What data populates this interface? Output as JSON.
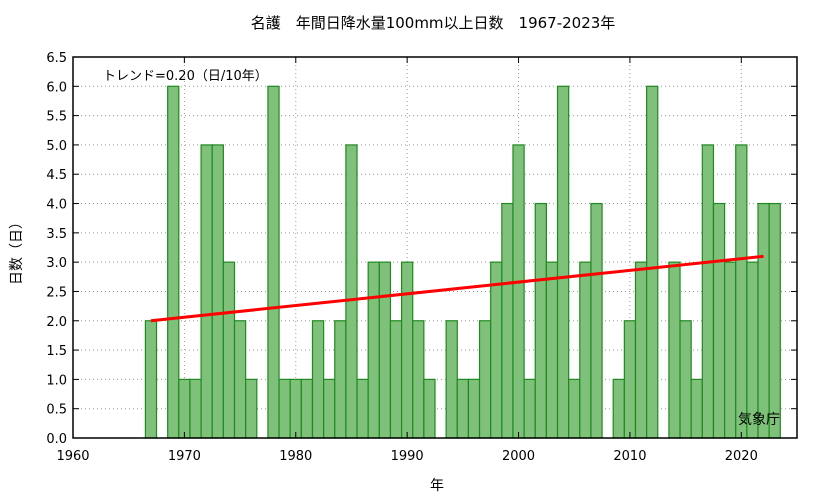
{
  "chart_data": {
    "type": "bar",
    "title": "名護　年間日降水量100mm以上日数　1967-2023年",
    "xlabel": "年",
    "ylabel": "日数（日）",
    "trend_label": "トレンド=0.20（日/10年）",
    "source_label": "気象庁",
    "xlim": [
      1960,
      2025
    ],
    "ylim": [
      0,
      6.5
    ],
    "x_ticks": [
      1960,
      1970,
      1980,
      1990,
      2000,
      2010,
      2020
    ],
    "y_ticks": [
      0.0,
      0.5,
      1.0,
      1.5,
      2.0,
      2.5,
      3.0,
      3.5,
      4.0,
      4.5,
      5.0,
      5.5,
      6.0,
      6.5
    ],
    "grid": true,
    "colors": {
      "bar_fill": "#7fc07a",
      "bar_stroke": "#1f8a1f",
      "trend": "#ff0000",
      "grid": "#9a9a9a"
    },
    "years": [
      1967,
      1968,
      1969,
      1970,
      1971,
      1972,
      1973,
      1974,
      1975,
      1976,
      1977,
      1978,
      1979,
      1980,
      1981,
      1982,
      1983,
      1984,
      1985,
      1986,
      1987,
      1988,
      1989,
      1990,
      1991,
      1992,
      1993,
      1994,
      1995,
      1996,
      1997,
      1998,
      1999,
      2000,
      2001,
      2002,
      2003,
      2004,
      2005,
      2006,
      2007,
      2008,
      2009,
      2010,
      2011,
      2012,
      2013,
      2014,
      2015,
      2016,
      2017,
      2018,
      2019,
      2020,
      2021,
      2022,
      2023
    ],
    "values": [
      2,
      0,
      6,
      1,
      1,
      5,
      5,
      3,
      2,
      1,
      0,
      6,
      1,
      1,
      1,
      2,
      1,
      2,
      5,
      1,
      3,
      3,
      2,
      3,
      2,
      1,
      0,
      2,
      1,
      1,
      2,
      3,
      4,
      5,
      1,
      4,
      3,
      6,
      1,
      3,
      4,
      0,
      1,
      2,
      3,
      6,
      0,
      3,
      2,
      1,
      5,
      4,
      3,
      5,
      3,
      4,
      4
    ],
    "trend": {
      "x": [
        1967,
        2022
      ],
      "y": [
        2.0,
        3.1
      ]
    }
  }
}
